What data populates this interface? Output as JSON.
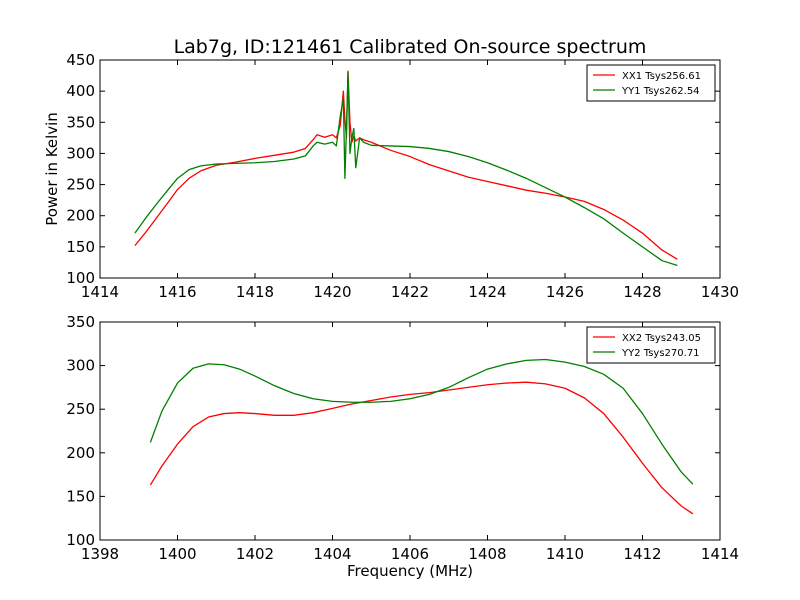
{
  "figure": {
    "title": "Lab7g, ID:121461 Calibrated On-source spectrum",
    "ylabel": "Power in Kelvin",
    "xlabel": "Frequency (MHz)"
  },
  "colors": {
    "red": "#ff0000",
    "green": "#008000"
  },
  "chart_data": [
    {
      "type": "line",
      "title": "Lab7g, ID:121461 Calibrated On-source spectrum",
      "xlabel": "",
      "ylabel": "Power in Kelvin",
      "xlim": [
        1414,
        1430
      ],
      "ylim": [
        100,
        450
      ],
      "xticks": [
        1414,
        1416,
        1418,
        1420,
        1422,
        1424,
        1426,
        1428,
        1430
      ],
      "yticks": [
        100,
        150,
        200,
        250,
        300,
        350,
        400,
        450
      ],
      "grid": false,
      "legend_position": "top-right",
      "series": [
        {
          "name": "XX1 Tsys256.61",
          "color": "#ff0000",
          "x": [
            1414.9,
            1415.2,
            1415.5,
            1415.8,
            1416.0,
            1416.3,
            1416.6,
            1417.0,
            1417.5,
            1418.0,
            1418.5,
            1419.0,
            1419.3,
            1419.5,
            1419.6,
            1419.8,
            1420.0,
            1420.1,
            1420.2,
            1420.28,
            1420.32,
            1420.36,
            1420.4,
            1420.45,
            1420.5,
            1420.55,
            1420.6,
            1420.7,
            1420.8,
            1421.0,
            1421.5,
            1422.0,
            1422.5,
            1423.0,
            1423.5,
            1424.0,
            1424.5,
            1425.0,
            1425.5,
            1426.0,
            1426.5,
            1427.0,
            1427.5,
            1428.0,
            1428.5,
            1428.9
          ],
          "y": [
            152,
            175,
            200,
            225,
            242,
            260,
            272,
            281,
            286,
            292,
            297,
            302,
            308,
            322,
            330,
            326,
            330,
            325,
            345,
            400,
            355,
            325,
            432,
            350,
            318,
            328,
            320,
            325,
            322,
            318,
            305,
            295,
            282,
            272,
            262,
            255,
            248,
            241,
            236,
            230,
            223,
            210,
            193,
            172,
            145,
            130
          ]
        },
        {
          "name": "YY1 Tsys262.54",
          "color": "#008000",
          "x": [
            1414.9,
            1415.2,
            1415.5,
            1415.8,
            1416.0,
            1416.3,
            1416.6,
            1417.0,
            1417.5,
            1418.0,
            1418.5,
            1419.0,
            1419.3,
            1419.5,
            1419.6,
            1419.8,
            1420.0,
            1420.1,
            1420.2,
            1420.28,
            1420.32,
            1420.36,
            1420.4,
            1420.45,
            1420.5,
            1420.55,
            1420.6,
            1420.7,
            1420.8,
            1421.0,
            1421.5,
            1422.0,
            1422.5,
            1423.0,
            1423.5,
            1424.0,
            1424.5,
            1425.0,
            1425.5,
            1426.0,
            1426.5,
            1427.0,
            1427.5,
            1428.0,
            1428.5,
            1428.9
          ],
          "y": [
            172,
            198,
            222,
            245,
            260,
            274,
            280,
            283,
            284,
            285,
            287,
            291,
            296,
            312,
            318,
            315,
            318,
            312,
            360,
            388,
            260,
            340,
            430,
            300,
            325,
            340,
            277,
            325,
            318,
            313,
            312,
            311,
            308,
            303,
            295,
            285,
            273,
            260,
            245,
            230,
            213,
            195,
            172,
            150,
            128,
            120
          ]
        }
      ]
    },
    {
      "type": "line",
      "title": "",
      "xlabel": "Frequency (MHz)",
      "ylabel": "",
      "xlim": [
        1398,
        1414
      ],
      "ylim": [
        100,
        350
      ],
      "xticks": [
        1398,
        1400,
        1402,
        1404,
        1406,
        1408,
        1410,
        1412,
        1414
      ],
      "yticks": [
        100,
        150,
        200,
        250,
        300,
        350
      ],
      "grid": false,
      "legend_position": "top-right",
      "series": [
        {
          "name": "XX2 Tsys243.05",
          "color": "#ff0000",
          "x": [
            1399.3,
            1399.6,
            1400.0,
            1400.4,
            1400.8,
            1401.2,
            1401.6,
            1402.0,
            1402.5,
            1403.0,
            1403.5,
            1404.0,
            1404.5,
            1405.0,
            1405.5,
            1406.0,
            1406.5,
            1407.0,
            1407.5,
            1408.0,
            1408.5,
            1409.0,
            1409.5,
            1410.0,
            1410.5,
            1411.0,
            1411.5,
            1412.0,
            1412.5,
            1413.0,
            1413.3
          ],
          "y": [
            163,
            185,
            210,
            230,
            241,
            245,
            246,
            245,
            243,
            243,
            246,
            251,
            256,
            260,
            264,
            267,
            269,
            272,
            275,
            278,
            280,
            281,
            279,
            274,
            263,
            245,
            218,
            188,
            160,
            139,
            130
          ]
        },
        {
          "name": "YY2 Tsys270.71",
          "color": "#008000",
          "x": [
            1399.3,
            1399.6,
            1400.0,
            1400.4,
            1400.8,
            1401.2,
            1401.6,
            1402.0,
            1402.5,
            1403.0,
            1403.5,
            1404.0,
            1404.5,
            1405.0,
            1405.5,
            1406.0,
            1406.5,
            1407.0,
            1407.5,
            1408.0,
            1408.5,
            1409.0,
            1409.5,
            1410.0,
            1410.5,
            1411.0,
            1411.5,
            1412.0,
            1412.5,
            1413.0,
            1413.3
          ],
          "y": [
            212,
            248,
            280,
            297,
            302,
            301,
            296,
            288,
            277,
            268,
            262,
            259,
            258,
            258,
            259,
            262,
            267,
            275,
            286,
            296,
            302,
            306,
            307,
            304,
            299,
            290,
            274,
            245,
            210,
            178,
            164
          ]
        }
      ]
    }
  ]
}
